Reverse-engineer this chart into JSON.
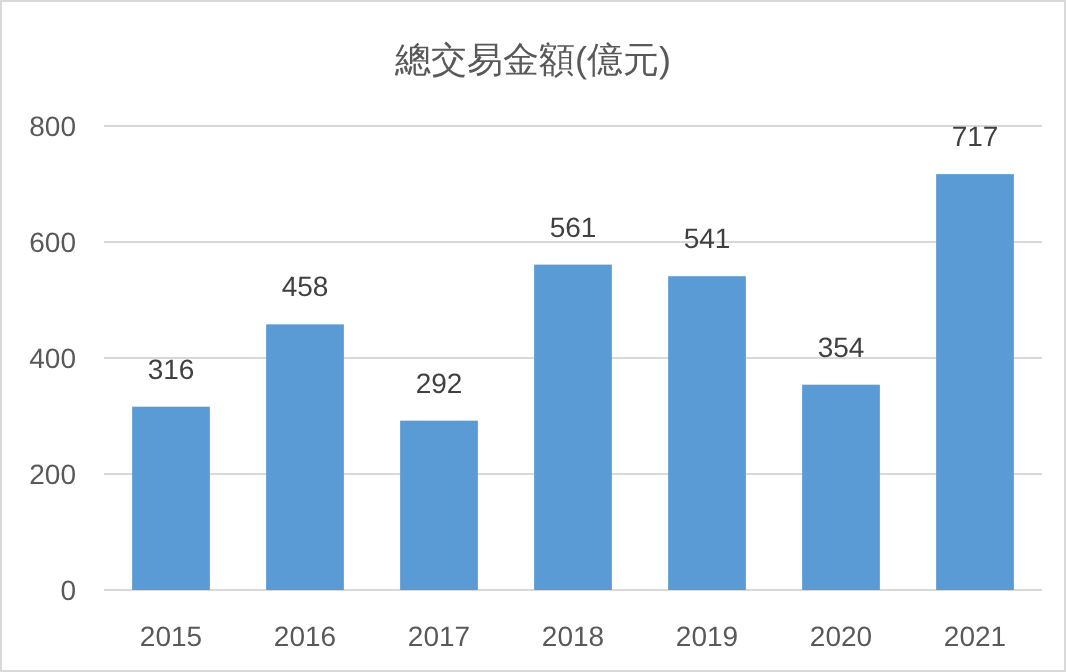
{
  "chart_data": {
    "type": "bar",
    "title": "總交易金額(億元)",
    "categories": [
      "2015",
      "2016",
      "2017",
      "2018",
      "2019",
      "2020",
      "2021"
    ],
    "values": [
      316,
      458,
      292,
      561,
      541,
      354,
      717
    ],
    "color": "#5b9bd5",
    "ylim": [
      0,
      800
    ],
    "yticks": [
      0,
      200,
      400,
      600,
      800
    ],
    "grid": "y",
    "data_labels": true
  }
}
